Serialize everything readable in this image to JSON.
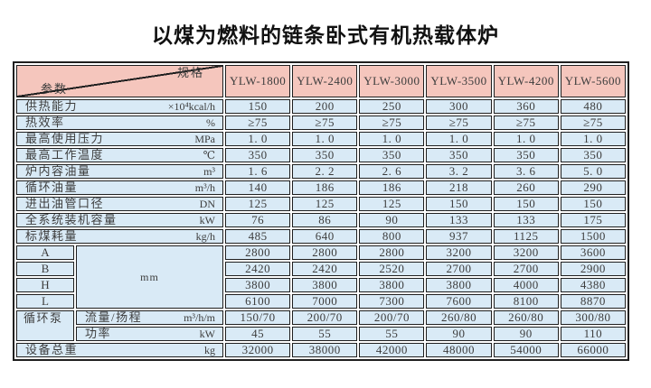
{
  "title": "以煤为燃料的链条卧式有机热载体炉",
  "colors": {
    "header_bg": "#f5c6bd",
    "cell_bg": "#d9eaf6",
    "border": "#1f1f1f",
    "text": "#3d3d3d"
  },
  "table": {
    "corner": {
      "spec": "规格",
      "param": "参数"
    },
    "models": [
      "YLW-1800",
      "YLW-2400",
      "YLW-3000",
      "YLW-3500",
      "YLW-4200",
      "YLW-5600"
    ],
    "rows": [
      {
        "label": "供热能力",
        "unit": "×10⁴kcal/h",
        "v": [
          "150",
          "200",
          "250",
          "300",
          "360",
          "480"
        ]
      },
      {
        "label": "热效率",
        "unit": "%",
        "v": [
          "≥75",
          "≥75",
          "≥75",
          "≥75",
          "≥75",
          "≥75"
        ]
      },
      {
        "label": "最高使用压力",
        "unit": "MPa",
        "v": [
          "1. 0",
          "1. 0",
          "1. 0",
          "1. 0",
          "1. 0",
          "1. 0"
        ]
      },
      {
        "label": "最高工作温度",
        "unit": "℃",
        "v": [
          "350",
          "350",
          "350",
          "350",
          "350",
          "350"
        ]
      },
      {
        "label": "炉内容油量",
        "unit": "m³",
        "v": [
          "1. 6",
          "2. 2",
          "2. 6",
          "3. 2",
          "3. 6",
          "5. 0"
        ]
      },
      {
        "label": "循环油量",
        "unit": "m³/h",
        "v": [
          "140",
          "186",
          "186",
          "218",
          "260",
          "290"
        ]
      },
      {
        "label": "进出油管口径",
        "unit": "DN",
        "v": [
          "125",
          "125",
          "125",
          "150",
          "150",
          "150"
        ]
      },
      {
        "label": "全系统装机容量",
        "unit": "kW",
        "v": [
          "76",
          "86",
          "90",
          "133",
          "133",
          "175"
        ]
      },
      {
        "label": "标煤耗量",
        "unit": "kg/h",
        "v": [
          "485",
          "640",
          "800",
          "937",
          "1125",
          "1500"
        ]
      }
    ],
    "dims": {
      "unit": "mm",
      "rows": [
        {
          "label": "A",
          "v": [
            "2800",
            "2800",
            "2800",
            "3200",
            "3200",
            "3600"
          ]
        },
        {
          "label": "B",
          "v": [
            "2420",
            "2420",
            "2520",
            "2700",
            "2700",
            "2900"
          ]
        },
        {
          "label": "H",
          "v": [
            "3800",
            "3800",
            "3800",
            "3800",
            "4000",
            "4380"
          ]
        },
        {
          "label": "L",
          "v": [
            "6100",
            "7000",
            "7300",
            "7600",
            "8100",
            "8870"
          ]
        }
      ]
    },
    "pump": {
      "label": "循环泵",
      "rows": [
        {
          "label": "流量/扬程",
          "unit": "m³/h/m",
          "v": [
            "150/70",
            "200/70",
            "200/70",
            "260/80",
            "260/80",
            "300/80"
          ]
        },
        {
          "label": "功率",
          "unit": "kW",
          "v": [
            "45",
            "55",
            "55",
            "90",
            "90",
            "110"
          ]
        }
      ]
    },
    "total": {
      "label": "设备总重",
      "unit": "kg",
      "v": [
        "32000",
        "38000",
        "42000",
        "48000",
        "54000",
        "66000"
      ]
    }
  }
}
